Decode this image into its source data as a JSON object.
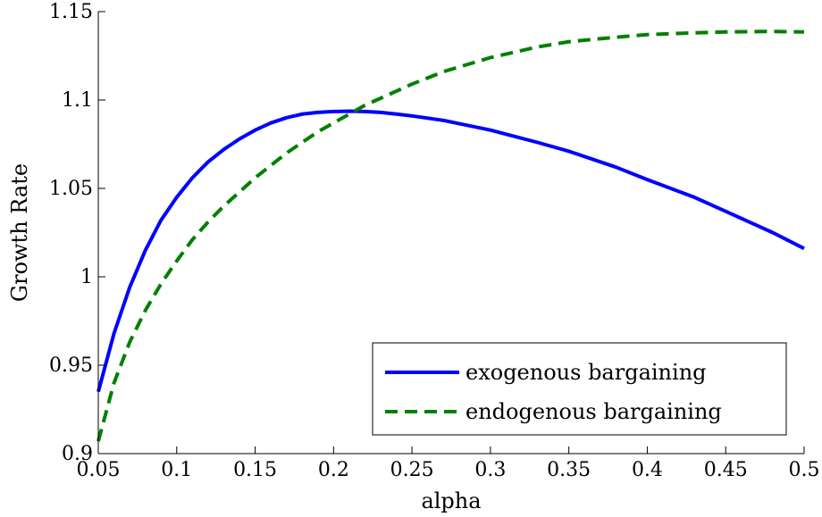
{
  "chart_data": {
    "type": "line",
    "title": "",
    "xlabel": "alpha",
    "ylabel": "Growth Rate",
    "xlim": [
      0.05,
      0.5
    ],
    "ylim": [
      0.9,
      1.15
    ],
    "xticks": [
      "0.05",
      "0.1",
      "0.15",
      "0.2",
      "0.25",
      "0.3",
      "0.35",
      "0.4",
      "0.45",
      "0.5"
    ],
    "yticks": [
      "0.9",
      "0.95",
      "1",
      "1.05",
      "1.1",
      "1.15"
    ],
    "grid": false,
    "legend_position": "bottom-right",
    "x": [
      0.05,
      0.06,
      0.07,
      0.08,
      0.09,
      0.1,
      0.11,
      0.12,
      0.13,
      0.14,
      0.15,
      0.16,
      0.17,
      0.18,
      0.19,
      0.2,
      0.21,
      0.22,
      0.23,
      0.24,
      0.25,
      0.27,
      0.3,
      0.33,
      0.35,
      0.38,
      0.4,
      0.43,
      0.45,
      0.48,
      0.5
    ],
    "series": [
      {
        "name": "exogenous bargaining",
        "color": "#0000ff",
        "style": "solid",
        "values": [
          0.935,
          0.968,
          0.994,
          1.015,
          1.032,
          1.045,
          1.056,
          1.065,
          1.072,
          1.078,
          1.083,
          1.087,
          1.09,
          1.092,
          1.093,
          1.0935,
          1.0937,
          1.0935,
          1.093,
          1.092,
          1.091,
          1.0885,
          1.083,
          1.076,
          1.071,
          1.062,
          1.055,
          1.045,
          1.037,
          1.025,
          1.016
        ]
      },
      {
        "name": "endogenous bargaining",
        "color": "#008000",
        "style": "dashed",
        "values": [
          0.907,
          0.94,
          0.963,
          0.981,
          0.996,
          1.009,
          1.021,
          1.031,
          1.04,
          1.048,
          1.056,
          1.063,
          1.07,
          1.076,
          1.082,
          1.087,
          1.092,
          1.097,
          1.101,
          1.105,
          1.109,
          1.116,
          1.124,
          1.13,
          1.133,
          1.1355,
          1.137,
          1.138,
          1.1385,
          1.1388,
          1.1385
        ]
      }
    ]
  }
}
